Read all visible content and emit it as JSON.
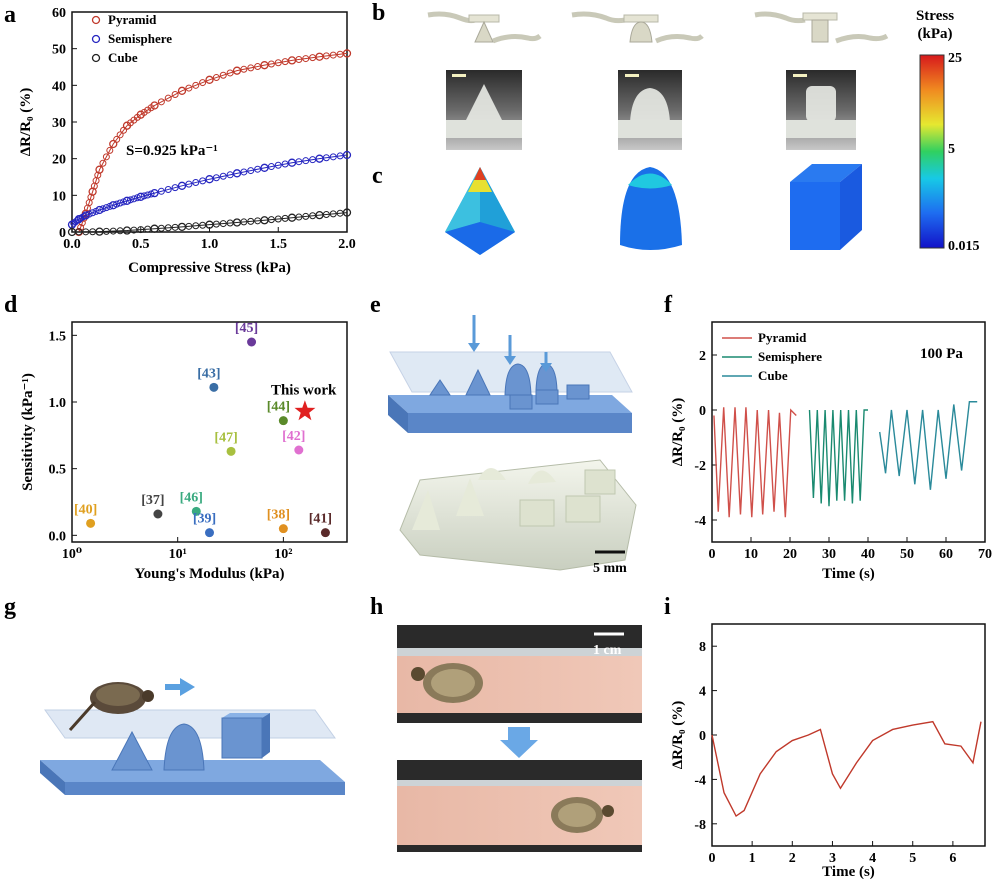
{
  "panel_labels": {
    "a": "a",
    "b": "b",
    "c": "c",
    "d": "d",
    "e": "e",
    "f": "f",
    "g": "g",
    "h": "h",
    "i": "i"
  },
  "panel_a": {
    "annotation": "S=0.925 kPa⁻¹",
    "ylabel": "ΔR/R₀ (%)",
    "xlabel": "Compressive Stress (kPa)"
  },
  "panel_c": {
    "title_line1": "Stress",
    "title_line2": "(kPa)"
  },
  "panel_e": {
    "scale": "5 mm"
  },
  "panel_h": {
    "scale": "1 cm"
  },
  "panel_f": {
    "annotation": "100 Pa"
  },
  "chart_data": [
    {
      "type": "scatter",
      "panel": "a",
      "xlabel": "Compressive Stress (kPa)",
      "ylabel": "ΔR/R₀ (%)",
      "xlim": [
        0,
        2.0
      ],
      "ylim": [
        0,
        60
      ],
      "xticks": [
        "0.0",
        "0.5",
        "1.0",
        "1.5",
        "2.0"
      ],
      "yticks": [
        "0",
        "10",
        "20",
        "30",
        "40",
        "50",
        "60"
      ],
      "legend_position": "top-left",
      "series": [
        {
          "name": "Pyramid",
          "color": "#c0392b",
          "x": [
            0.05,
            0.1,
            0.15,
            0.2,
            0.3,
            0.4,
            0.5,
            0.6,
            0.8,
            1.0,
            1.2,
            1.4,
            1.6,
            1.8,
            2.0
          ],
          "y": [
            0,
            5,
            11,
            17,
            24,
            29,
            32,
            34.5,
            38.5,
            41.5,
            44,
            45.5,
            46.8,
            47.8,
            48.7
          ]
        },
        {
          "name": "Semisphere",
          "color": "#2626c0",
          "x": [
            0.0,
            0.05,
            0.1,
            0.2,
            0.3,
            0.4,
            0.5,
            0.6,
            0.8,
            1.0,
            1.2,
            1.4,
            1.6,
            1.8,
            2.0
          ],
          "y": [
            2,
            3.5,
            4.5,
            6,
            7.3,
            8.5,
            9.6,
            10.6,
            12.6,
            14.4,
            16,
            17.5,
            18.9,
            20,
            21
          ]
        },
        {
          "name": "Cube",
          "color": "#222222",
          "x": [
            0.0,
            0.2,
            0.4,
            0.6,
            0.8,
            1.0,
            1.2,
            1.4,
            1.6,
            1.8,
            2.0
          ],
          "y": [
            0,
            0.1,
            0.4,
            0.9,
            1.4,
            2,
            2.6,
            3.2,
            3.9,
            4.6,
            5.3
          ]
        }
      ]
    },
    {
      "type": "scatter",
      "panel": "c-colorbar",
      "title": "Stress (kPa)",
      "ticks": [
        "25",
        "5",
        "0.015"
      ],
      "colors": [
        "#d7191c",
        "#fdae61",
        "#d9ef8b",
        "#00d47a",
        "#17c9e6",
        "#1e6cf0",
        "#1010cc"
      ]
    },
    {
      "type": "scatter",
      "panel": "d",
      "xlabel": "Young's Modulus (kPa)",
      "ylabel": "Sensitivity (kPa⁻¹)",
      "xscale": "log",
      "xlim": [
        1,
        400
      ],
      "ylim": [
        -0.05,
        1.6
      ],
      "xticks": [
        "10⁰",
        "10¹",
        "10²"
      ],
      "yticks": [
        "0.0",
        "0.5",
        "1.0",
        "1.5"
      ],
      "points": [
        {
          "label": "[40]",
          "x": 1.5,
          "y": 0.09,
          "color": "#e0a020"
        },
        {
          "label": "[37]",
          "x": 6.5,
          "y": 0.16,
          "color": "#444444"
        },
        {
          "label": "[46]",
          "x": 15,
          "y": 0.18,
          "color": "#3aaa80"
        },
        {
          "label": "[39]",
          "x": 20,
          "y": 0.02,
          "color": "#3a6ec0"
        },
        {
          "label": "[43]",
          "x": 22,
          "y": 1.11,
          "color": "#3a6ea5"
        },
        {
          "label": "[45]",
          "x": 50,
          "y": 1.45,
          "color": "#6a3a9a"
        },
        {
          "label": "[47]",
          "x": 32,
          "y": 0.63,
          "color": "#a8c040"
        },
        {
          "label": "[44]",
          "x": 100,
          "y": 0.86,
          "color": "#5a8a2a"
        },
        {
          "label": "[42]",
          "x": 140,
          "y": 0.64,
          "color": "#e070d0"
        },
        {
          "label": "[38]",
          "x": 100,
          "y": 0.05,
          "color": "#e09020"
        },
        {
          "label": "[41]",
          "x": 250,
          "y": 0.02,
          "color": "#5a2a2a"
        },
        {
          "label": "This work",
          "x": 160,
          "y": 0.93,
          "color": "#e02020",
          "marker": "star"
        }
      ]
    },
    {
      "type": "line",
      "panel": "f",
      "xlabel": "Time (s)",
      "ylabel": "ΔR/R₀ (%)",
      "xlim": [
        0,
        70
      ],
      "ylim": [
        -4.8,
        3.2
      ],
      "xticks": [
        "0",
        "10",
        "20",
        "30",
        "40",
        "50",
        "60",
        "70"
      ],
      "yticks": [
        "-4",
        "-2",
        "0",
        "2"
      ],
      "legend_position": "top-left",
      "series": [
        {
          "name": "Pyramid",
          "color": "#d0504a",
          "x": [
            0.5,
            1.6,
            3,
            4.4,
            5.9,
            7.3,
            8.7,
            10.2,
            11.6,
            13,
            14.5,
            15.9,
            17.3,
            18.8,
            20.2,
            21.6
          ],
          "y": [
            -0.2,
            -3.7,
            0.1,
            -3.9,
            0.1,
            -3.8,
            0.1,
            -3.9,
            0,
            -3.8,
            0,
            -3.7,
            -0.1,
            -3.9,
            0,
            -0.2
          ]
        },
        {
          "name": "Semisphere",
          "color": "#1a8a70",
          "x": [
            25,
            26,
            27,
            28,
            29,
            30,
            31,
            32,
            33,
            34,
            35,
            36,
            37,
            38,
            39,
            40
          ],
          "y": [
            0,
            -3.2,
            0,
            -3.4,
            0,
            -3.5,
            0,
            -3.3,
            0,
            -3.3,
            0,
            -3.4,
            0,
            -3.3,
            0,
            0
          ]
        },
        {
          "name": "Cube",
          "color": "#2a8a9a",
          "x": [
            43,
            44.5,
            46,
            48,
            50,
            52,
            54,
            56,
            58,
            60,
            62,
            64,
            66,
            68
          ],
          "y": [
            -0.8,
            -2.3,
            0,
            -2.4,
            0,
            -2.7,
            0,
            -2.9,
            0,
            -2.5,
            0.2,
            -2.2,
            0.3,
            0.3
          ]
        }
      ]
    },
    {
      "type": "line",
      "panel": "i",
      "xlabel": "Time (s)",
      "ylabel": "ΔR/R₀ (%)",
      "xlim": [
        0,
        6.8
      ],
      "ylim": [
        -10,
        10
      ],
      "xticks": [
        "0",
        "1",
        "2",
        "3",
        "4",
        "5",
        "6"
      ],
      "yticks": [
        "-8",
        "-4",
        "0",
        "4",
        "8"
      ],
      "series": [
        {
          "name": "",
          "color": "#c0392b",
          "x": [
            0,
            0.3,
            0.6,
            0.8,
            1.2,
            1.6,
            2.0,
            2.4,
            2.7,
            3.0,
            3.2,
            3.6,
            4.0,
            4.5,
            5.0,
            5.5,
            5.8,
            6.2,
            6.5,
            6.7
          ],
          "y": [
            0,
            -5.2,
            -7.3,
            -6.8,
            -3.5,
            -1.5,
            -0.5,
            0,
            0.5,
            -3.5,
            -4.8,
            -2.5,
            -0.5,
            0.5,
            0.9,
            1.2,
            -0.8,
            -1.0,
            -2.5,
            1.2
          ]
        }
      ]
    }
  ]
}
